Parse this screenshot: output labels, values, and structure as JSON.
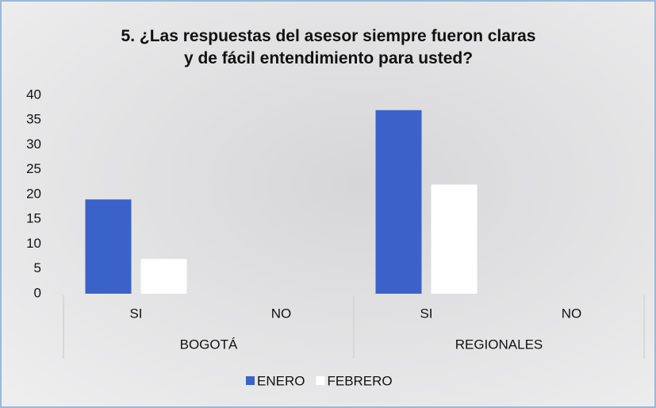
{
  "chart_data": {
    "type": "bar",
    "title": "5. ¿Las respuestas del asesor siempre fueron claras y de fácil entendimiento para usted?",
    "categories": [
      "SI",
      "NO",
      "SI",
      "NO"
    ],
    "groups": [
      "BOGOTÁ",
      "REGIONALES"
    ],
    "series": [
      {
        "name": "ENERO",
        "color": "#3a62c8",
        "values": [
          19,
          0,
          37,
          0
        ]
      },
      {
        "name": "FEBRERO",
        "color": "#ffffff",
        "values": [
          7,
          0,
          22,
          0
        ]
      }
    ],
    "ylim": [
      0,
      40
    ],
    "yticks": [
      0,
      5,
      10,
      15,
      20,
      25,
      30,
      35,
      40
    ],
    "grid": false,
    "legend": "bottom"
  }
}
